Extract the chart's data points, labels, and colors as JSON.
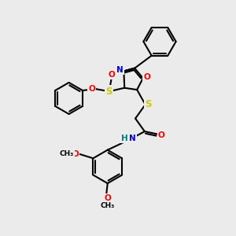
{
  "background_color": "#ebebeb",
  "bond_color": "#000000",
  "atom_colors": {
    "N": "#0000ff",
    "O": "#ff0000",
    "S": "#cccc00",
    "H": "#008080",
    "C": "#000000"
  }
}
